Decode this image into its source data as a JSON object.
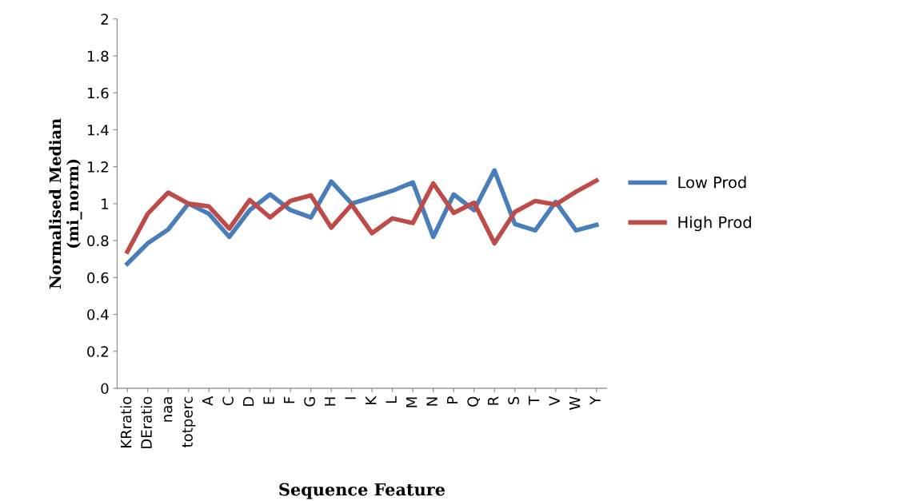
{
  "chart_data": {
    "type": "line",
    "xlabel": "Sequence Feature",
    "ylabel": "Normalised Median\n(mi_norm)",
    "categories": [
      "KRratio",
      "DEratio",
      "naa",
      "totperc",
      "A",
      "C",
      "D",
      "E",
      "F",
      "G",
      "H",
      "I",
      "K",
      "L",
      "M",
      "N",
      "P",
      "Q",
      "R",
      "S",
      "T",
      "V",
      "W",
      "Y"
    ],
    "series": [
      {
        "name": "Low Prod",
        "color": "#4a7ebb",
        "values": [
          0.675,
          0.785,
          0.86,
          1.0,
          0.945,
          0.82,
          0.965,
          1.05,
          0.965,
          0.925,
          1.12,
          1.0,
          1.035,
          1.07,
          1.115,
          0.82,
          1.05,
          0.965,
          1.18,
          0.89,
          0.855,
          1.01,
          0.855,
          0.885
        ]
      },
      {
        "name": "High Prod",
        "color": "#be4b48",
        "values": [
          0.74,
          0.945,
          1.06,
          1.0,
          0.985,
          0.865,
          1.02,
          0.925,
          1.015,
          1.045,
          0.87,
          0.995,
          0.84,
          0.92,
          0.895,
          1.11,
          0.95,
          1.005,
          0.785,
          0.955,
          1.015,
          0.995,
          1.065,
          1.125
        ]
      }
    ],
    "ylim": [
      0,
      2
    ],
    "yticks": [
      0,
      {
        "value": 0.2,
        "label": "0.2"
      },
      {
        "value": 0.4,
        "label": "0.4"
      },
      {
        "value": 0.6,
        "label": "0.6"
      },
      {
        "value": 0.8,
        "label": "0.8"
      },
      1,
      {
        "value": 1.2,
        "label": "1.2"
      },
      {
        "value": 1.4,
        "label": "1.4"
      },
      {
        "value": 1.6,
        "label": "1.6"
      },
      {
        "value": 1.8,
        "label": "1.8"
      },
      2
    ],
    "grid": false,
    "legend": "right",
    "marker": "none",
    "line_style": "solid"
  }
}
